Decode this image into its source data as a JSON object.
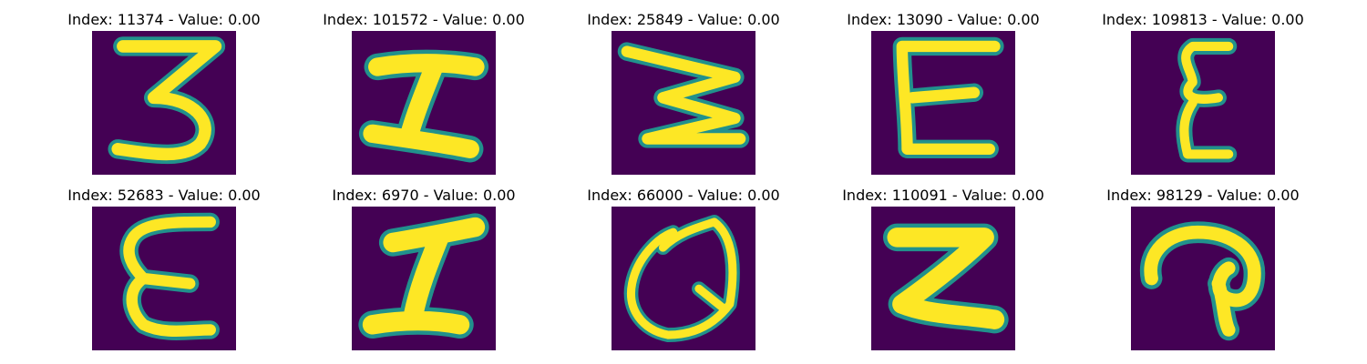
{
  "colors": {
    "background": "#440154",
    "stroke_edge": "#21918c",
    "stroke_mid": "#5ec962",
    "stroke_core": "#fde725"
  },
  "panels": [
    {
      "index_label": "Index: 11374 - Value: 0.00",
      "glyph": "3"
    },
    {
      "index_label": "Index: 101572 - Value: 0.00",
      "glyph": "I"
    },
    {
      "index_label": "Index: 25849 - Value: 0.00",
      "glyph": "W"
    },
    {
      "index_label": "Index: 13090 - Value: 0.00",
      "glyph": "E"
    },
    {
      "index_label": "Index: 109813 - Value: 0.00",
      "glyph": "E"
    },
    {
      "index_label": "Index: 52683 - Value: 0.00",
      "glyph": "E"
    },
    {
      "index_label": "Index: 6970 - Value: 0.00",
      "glyph": "I"
    },
    {
      "index_label": "Index: 66000 - Value: 0.00",
      "glyph": "Q"
    },
    {
      "index_label": "Index: 110091 - Value: 0.00",
      "glyph": "Z"
    },
    {
      "index_label": "Index: 98129 - Value: 0.00",
      "glyph": "a"
    }
  ]
}
